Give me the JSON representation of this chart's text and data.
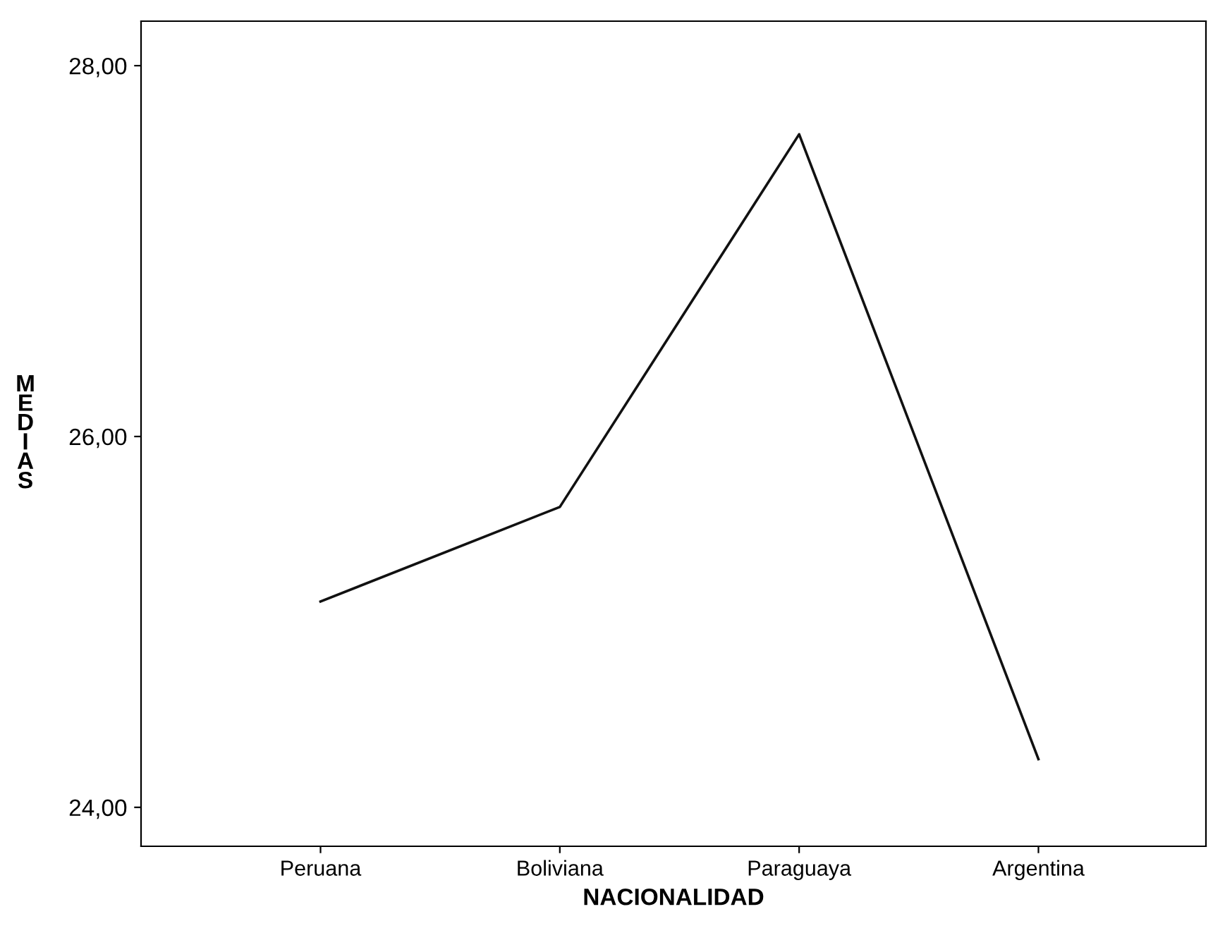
{
  "chart_data": {
    "type": "line",
    "xlabel": "NACIONALIDAD",
    "ylabel": "MEDIAS",
    "categories": [
      "Peruana",
      "Boliviana",
      "Paraguaya",
      "Argentina"
    ],
    "series": [
      {
        "color": "#111111",
        "values": [
          25.11,
          25.62,
          27.63,
          24.26
        ]
      }
    ],
    "ylim": [
      23.79,
      28.24
    ],
    "yticks": [
      {
        "value": 24,
        "label": "24,00"
      },
      {
        "value": 26,
        "label": "26,00"
      },
      {
        "value": 28,
        "label": "28,00"
      }
    ],
    "grid": false,
    "legend": false,
    "marker": "none",
    "line_style": "solid"
  }
}
